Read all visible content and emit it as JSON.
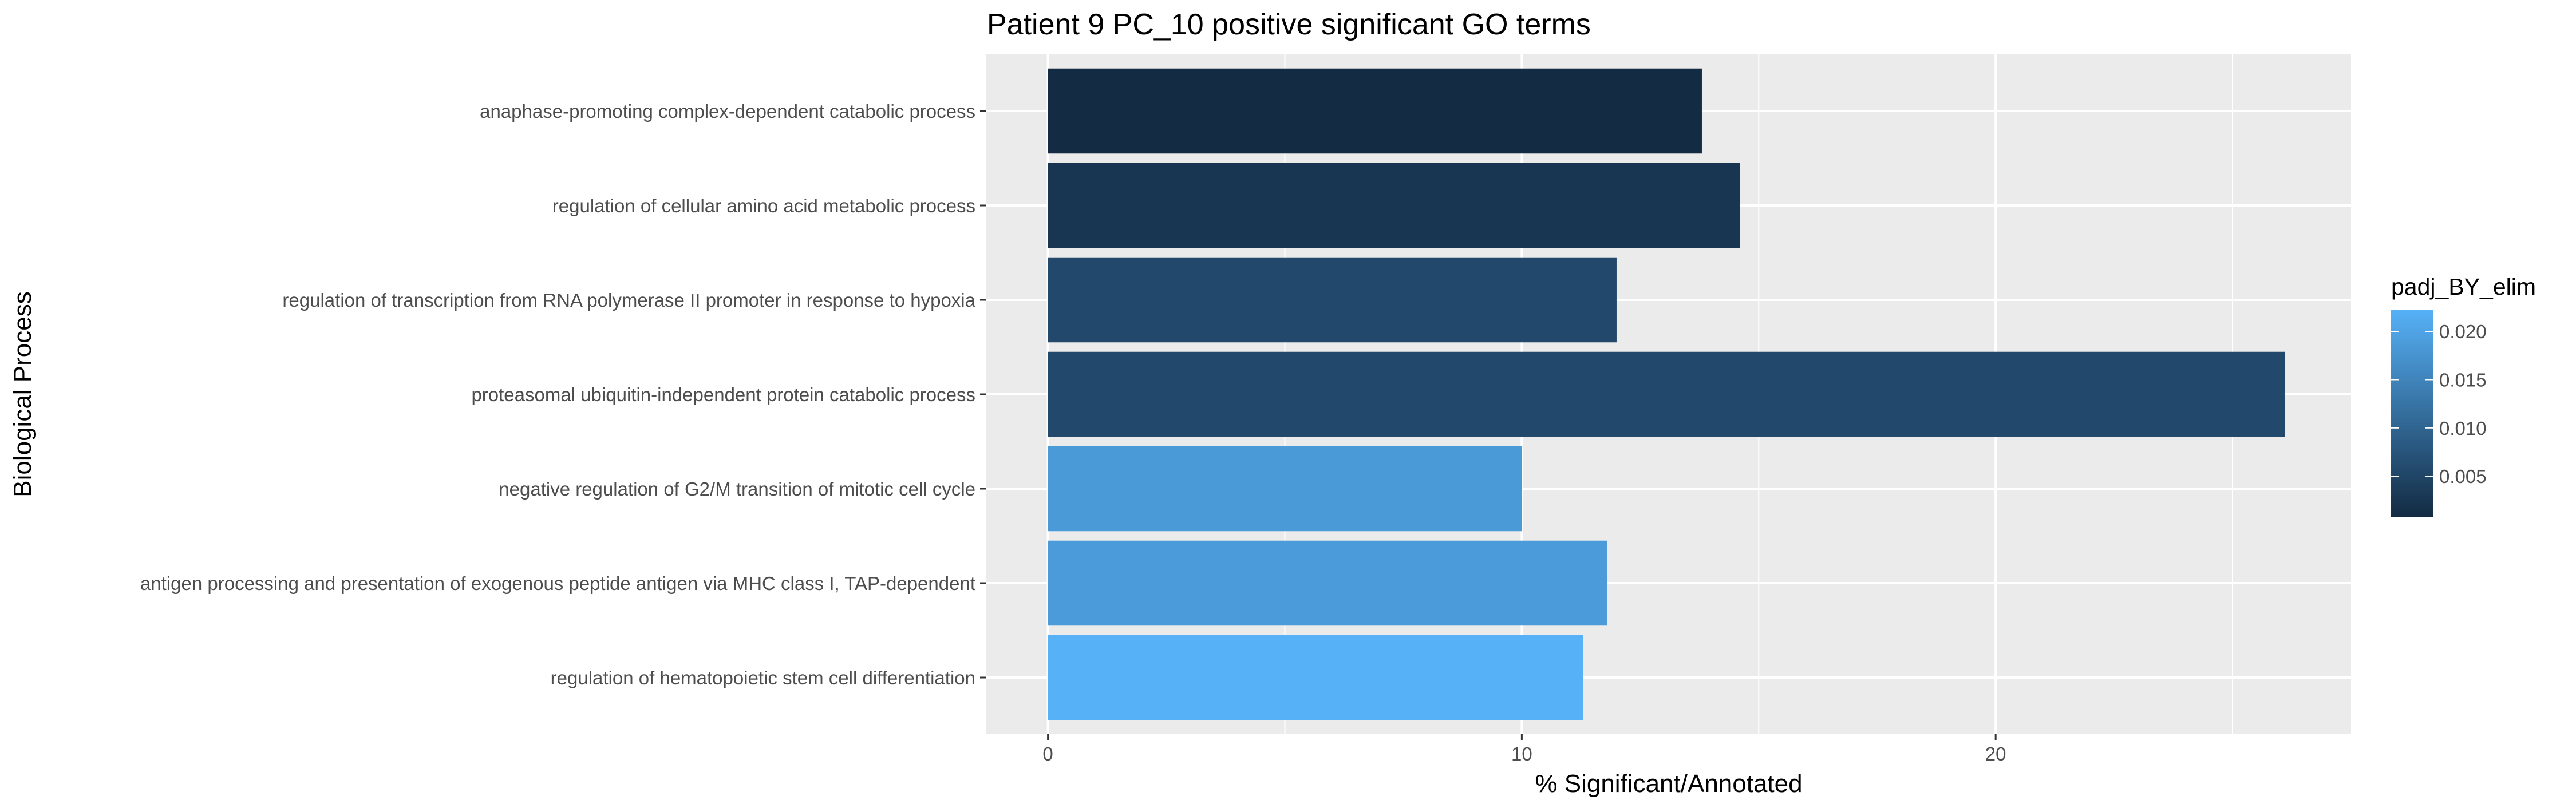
{
  "chart_data": {
    "type": "bar",
    "orientation": "horizontal",
    "title": "Patient 9 PC_10 positive significant GO terms",
    "xlabel": "% Significant/Annotated",
    "ylabel": "Biological Process",
    "xlim": [
      -1.3,
      27.5
    ],
    "x_ticks": [
      0,
      10,
      20
    ],
    "x_tick_labels": [
      "0",
      "10",
      "20"
    ],
    "grid": true,
    "categories": [
      "anaphase-promoting complex-dependent catabolic process",
      "regulation of cellular amino acid metabolic process",
      "regulation of transcription from RNA polymerase II promoter in response to hypoxia",
      "proteasomal ubiquitin-independent protein catabolic process",
      "negative regulation of G2/M transition of mitotic cell cycle",
      "antigen processing and presentation of exogenous peptide antigen via MHC class I, TAP-dependent",
      "regulation of hematopoietic stem cell differentiation"
    ],
    "values": [
      13.8,
      14.6,
      12.0,
      26.1,
      10.0,
      11.8,
      11.3
    ],
    "fill_values": [
      0.0008,
      0.0025,
      0.0055,
      0.0055,
      0.0185,
      0.0187,
      0.0222
    ],
    "legend": {
      "title": "padj_BY_elim",
      "position": "right",
      "range": [
        0.0008,
        0.0222
      ],
      "ticks": [
        0.005,
        0.01,
        0.015,
        0.02
      ],
      "tick_labels": [
        "0.005",
        "0.010",
        "0.015",
        "0.020"
      ],
      "color_low": "#132B43",
      "color_high": "#56B1F7"
    }
  }
}
